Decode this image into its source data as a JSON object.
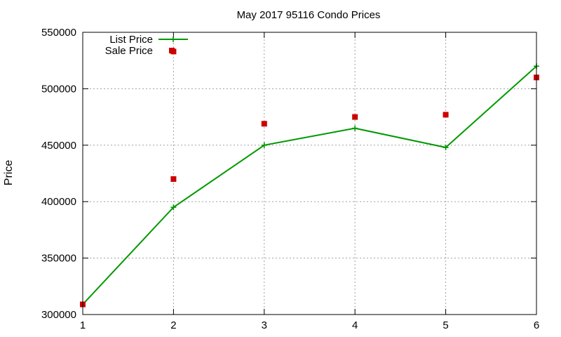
{
  "chart_data": {
    "type": "line",
    "title": "May 2017 95116 Condo Prices",
    "xlabel": "",
    "ylabel": "Price",
    "xlim": [
      1,
      6
    ],
    "ylim": [
      300000,
      550000
    ],
    "x_ticks": [
      1,
      2,
      3,
      4,
      5,
      6
    ],
    "y_ticks": [
      300000,
      350000,
      400000,
      450000,
      500000,
      550000
    ],
    "grid": true,
    "legend_position": "top-left",
    "series": [
      {
        "name": "List Price",
        "style": "line-with-plus-markers",
        "color": "#009900",
        "x": [
          1,
          2,
          3,
          4,
          5,
          6
        ],
        "y": [
          309000,
          395000,
          450000,
          465000,
          448000,
          520000
        ]
      },
      {
        "name": "Sale Price",
        "style": "square-points",
        "color": "#cc0000",
        "x": [
          1,
          2,
          2,
          3,
          4,
          5,
          6
        ],
        "y": [
          309000,
          420000,
          533000,
          469000,
          475000,
          477000,
          510000
        ]
      }
    ]
  }
}
